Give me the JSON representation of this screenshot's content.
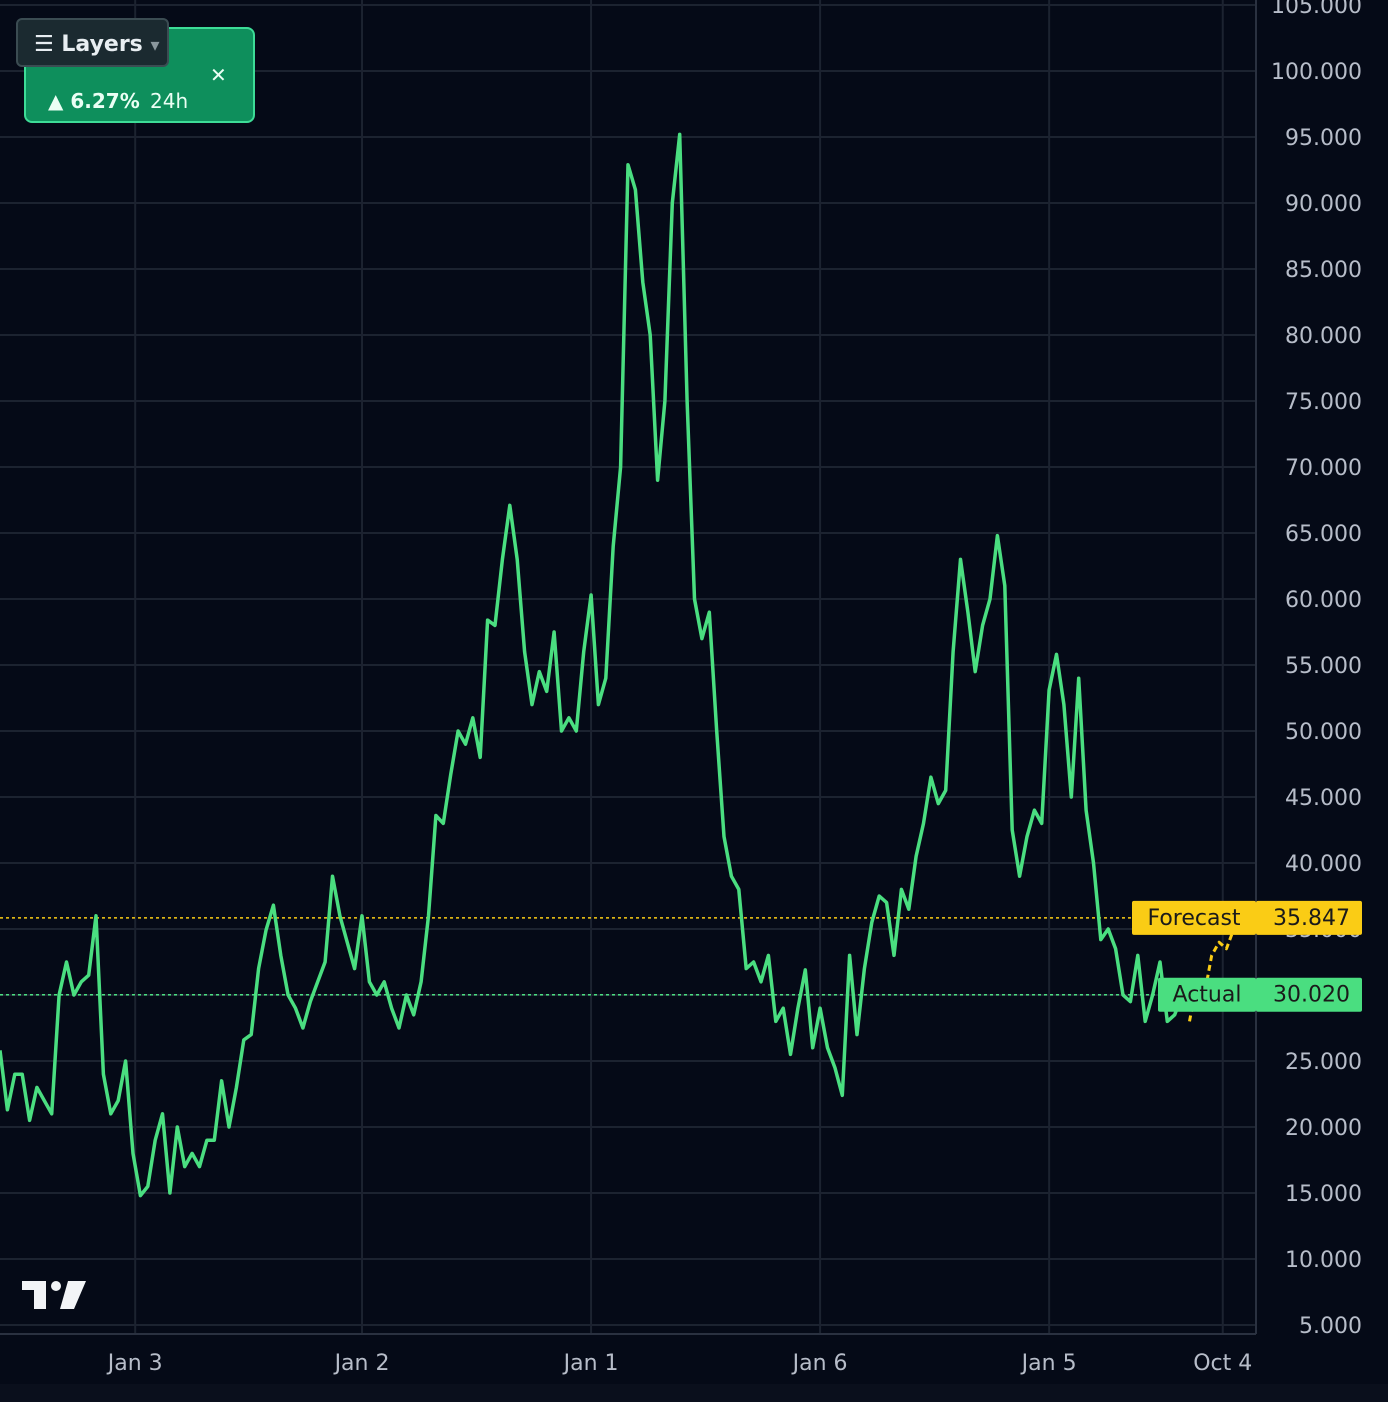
{
  "chart_data": {
    "type": "line",
    "xlim": [
      0,
      170
    ],
    "ylim": [
      5,
      105
    ],
    "xticks": [
      {
        "value": 18.3,
        "label": "Jan 3"
      },
      {
        "value": 49,
        "label": "Jan 2"
      },
      {
        "value": 80,
        "label": "Jan 1"
      },
      {
        "value": 111,
        "label": "Jan 6"
      },
      {
        "value": 142,
        "label": "Jan 5"
      },
      {
        "value": 165.5,
        "label": "Oct 4"
      }
    ],
    "yticks": [
      {
        "value": 5,
        "label": "5.000"
      },
      {
        "value": 10,
        "label": "10.000"
      },
      {
        "value": 15,
        "label": "15.000"
      },
      {
        "value": 20,
        "label": "20.000"
      },
      {
        "value": 25,
        "label": "25.000"
      },
      {
        "value": 30,
        "label": "30.000"
      },
      {
        "value": 35,
        "label": "35.000"
      },
      {
        "value": 40,
        "label": "40.000"
      },
      {
        "value": 45,
        "label": "45.000"
      },
      {
        "value": 50,
        "label": "50.000"
      },
      {
        "value": 55,
        "label": "55.000"
      },
      {
        "value": 60,
        "label": "60.000"
      },
      {
        "value": 65,
        "label": "65.000"
      },
      {
        "value": 70,
        "label": "70.000"
      },
      {
        "value": 75,
        "label": "75.000"
      },
      {
        "value": 80,
        "label": "80.000"
      },
      {
        "value": 85,
        "label": "85.000"
      },
      {
        "value": 90,
        "label": "90.000"
      },
      {
        "value": 95,
        "label": "95.000"
      },
      {
        "value": 100,
        "label": "100.000"
      },
      {
        "value": 105,
        "label": "105.000"
      }
    ],
    "grid": true,
    "series": [
      {
        "name": "Actual",
        "color": "#4ade80",
        "values": [
          25.8,
          21.3,
          24,
          24,
          20.5,
          23,
          22,
          21,
          30,
          32.5,
          30,
          31,
          31.5,
          36,
          24,
          21,
          22,
          25,
          18,
          14.8,
          15.5,
          19,
          21,
          15,
          20,
          17,
          18,
          17,
          19,
          19,
          23.5,
          20,
          23,
          26.6,
          27,
          32,
          34.9,
          36.8,
          33,
          30,
          29,
          27.5,
          29.5,
          31,
          32.5,
          39,
          36,
          34,
          32,
          36,
          31,
          30,
          31,
          29,
          27.5,
          30,
          28.5,
          31,
          36,
          43.6,
          43,
          46.7,
          50,
          49,
          51,
          48,
          58.4,
          58,
          63,
          67.1,
          63,
          56,
          52,
          54.5,
          53,
          57.5,
          50,
          51,
          50,
          56,
          60.3,
          52,
          54,
          64,
          70,
          92.9,
          91,
          84,
          80,
          69,
          75,
          90,
          95.2,
          75,
          60,
          57,
          59,
          50,
          42,
          39,
          38,
          32,
          32.5,
          31,
          33,
          28,
          29,
          25.5,
          29,
          31.9,
          26,
          29,
          26,
          24.5,
          22.4,
          33,
          27,
          32,
          35.5,
          37.5,
          37,
          33,
          38,
          36.5,
          40.5,
          43,
          46.5,
          44.5,
          45.5,
          56,
          63,
          59,
          54.5,
          58,
          60,
          64.8,
          61,
          42.5,
          39,
          42,
          44,
          43,
          53.1,
          55.8,
          52,
          45,
          54,
          44,
          40,
          34.2,
          35,
          33.5,
          30,
          29.5,
          33,
          28,
          30,
          32.5,
          28,
          28.5,
          30
        ]
      },
      {
        "name": "Forecast",
        "color": "#facc15",
        "x": [
          161,
          162,
          163,
          164,
          165,
          166,
          167
        ],
        "values": [
          28,
          31,
          30,
          33,
          34,
          33.5,
          35
        ]
      }
    ],
    "price_lines": [
      {
        "label": "Forecast",
        "value": 35.847,
        "color": "#facc15"
      },
      {
        "label": "Actual",
        "value": 30.02,
        "value_label": "30.020",
        "color": "#4ade80"
      }
    ]
  },
  "widget": {
    "button": "☰ Layers",
    "change": "▲ 6.27%",
    "period": "24h",
    "close": "✕"
  }
}
